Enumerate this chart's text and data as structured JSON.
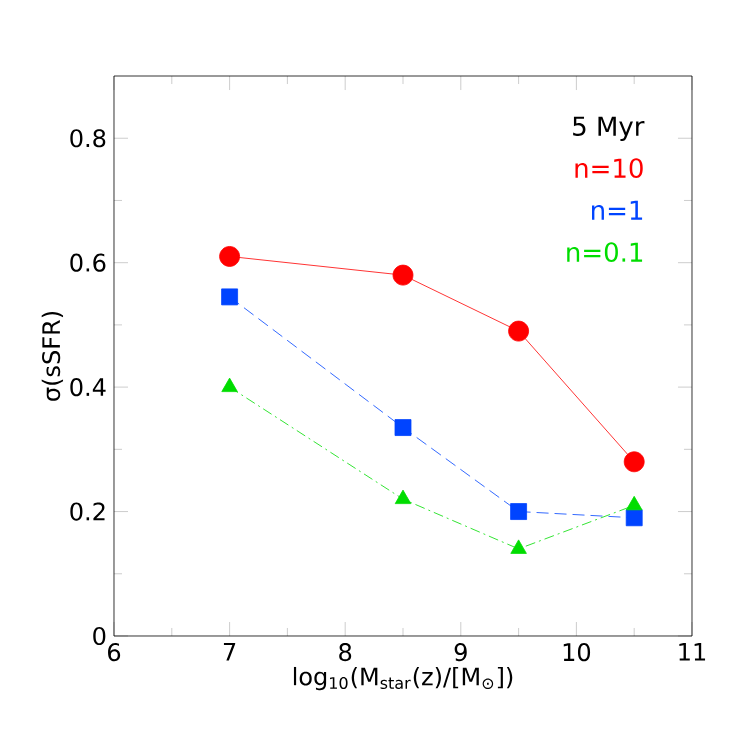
{
  "chart_data": {
    "type": "line",
    "xlabel": "log$_{10}$(M$_{star}$(z)/[M$_{⊙}$])",
    "ylabel": "σ(sSFR)",
    "annotations": [
      "5 Myr"
    ],
    "x": [
      7,
      8.5,
      9.5,
      10.5
    ],
    "series": [
      {
        "name": "n=10",
        "color": "#ff0000",
        "values": [
          0.61,
          0.58,
          0.49,
          0.28
        ],
        "marker": "circle",
        "line_style": "solid"
      },
      {
        "name": "n=1",
        "color": "#0044ff",
        "values": [
          0.545,
          0.335,
          0.2,
          0.19
        ],
        "marker": "square",
        "line_style": "dashed"
      },
      {
        "name": "n=0.1",
        "color": "#00dd00",
        "values": [
          0.4,
          0.22,
          0.14,
          0.21
        ],
        "marker": "triangle",
        "line_style": "dashdot"
      }
    ],
    "xlim": [
      6,
      11
    ],
    "ylim": [
      0,
      0.9
    ],
    "xticks": [
      6,
      7,
      8,
      9,
      10,
      11
    ],
    "yticks": [
      0,
      0.2,
      0.4,
      0.6,
      0.8
    ],
    "legend": "top right",
    "grid": false
  }
}
